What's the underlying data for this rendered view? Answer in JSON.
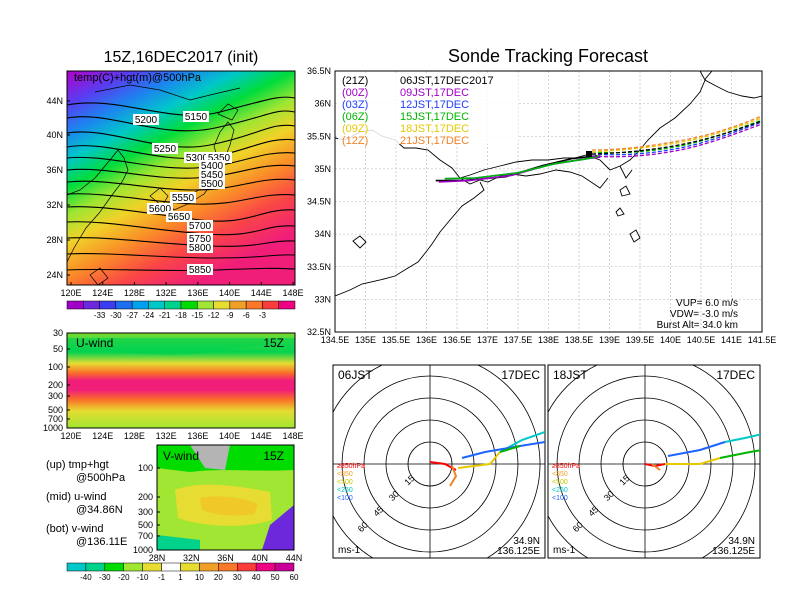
{
  "left_top": {
    "title": "15Z,16DEC2017 (init)",
    "label": "temp(C)+hgt(m)@500hPa",
    "lat_ticks": [
      "44N",
      "40N",
      "36N",
      "32N",
      "28N",
      "24N"
    ],
    "lon_ticks": [
      "120E",
      "124E",
      "128E",
      "132E",
      "136E",
      "140E",
      "144E",
      "148E"
    ],
    "contour_labels": [
      "5150",
      "5200",
      "5250",
      "5300",
      "5350",
      "5400",
      "5450",
      "5500",
      "5550",
      "5600",
      "5650",
      "5700",
      "5750",
      "5800",
      "5850"
    ],
    "colorbar_labels": [
      "-33",
      "-30",
      "-27",
      "-24",
      "-21",
      "-18",
      "-15",
      "-12",
      "-9",
      "-6",
      "-3"
    ],
    "colorbar_colors": [
      "#a000c8",
      "#6e28dc",
      "#3c3cf0",
      "#1e6ef0",
      "#00a0f0",
      "#00c8c8",
      "#00d28c",
      "#00dc00",
      "#a0e632",
      "#e6dc32",
      "#f0a028",
      "#fa7828",
      "#fa3c3c",
      "#f00082"
    ]
  },
  "left_mid": {
    "label": "U-wind",
    "time": "15Z",
    "p_ticks": [
      "30",
      "50",
      "100",
      "200",
      "300",
      "500",
      "700",
      "1000"
    ],
    "lon_ticks": [
      "120E",
      "124E",
      "128E",
      "132E",
      "136E",
      "140E",
      "144E",
      "148E"
    ]
  },
  "left_bot": {
    "label": "V-wind",
    "time": "15Z",
    "p_ticks": [
      "100",
      "200",
      "300",
      "500",
      "700",
      "1000"
    ],
    "lat_ticks": [
      "28N",
      "32N",
      "36N",
      "40N",
      "44N"
    ],
    "colorbar_labels": [
      "-40",
      "-30",
      "-20",
      "-10",
      "-1",
      "1",
      "10",
      "20",
      "30",
      "40",
      "50",
      "60"
    ],
    "colorbar_colors": [
      "#00c8c8",
      "#00d28c",
      "#00dc00",
      "#a0e632",
      "#e6dc32",
      "#ffffff",
      "#e6dc32",
      "#f0a028",
      "#fa7828",
      "#fa3c3c",
      "#f00082",
      "#c80096"
    ]
  },
  "legend": {
    "line1a": "(up)  tmp+hgt",
    "line1b": "@500hPa",
    "line2a": "(mid)  u-wind",
    "line2b": "@34.86N",
    "line3a": "(bot)  v-wind",
    "line3b": "@136.11E"
  },
  "right": {
    "title": "Sonde Tracking Forecast",
    "lat_ticks": [
      "36.5N",
      "36N",
      "35.5N",
      "35N",
      "34.5N",
      "34N",
      "33.5N",
      "33N",
      "32.5N"
    ],
    "lon_ticks": [
      "134.5E",
      "135E",
      "135.5E",
      "136E",
      "136.5E",
      "137E",
      "137.5E",
      "138E",
      "138.5E",
      "139E",
      "139.5E",
      "140E",
      "140.5E",
      "141E",
      "141.5E"
    ],
    "launches": [
      {
        "z": "(21Z)",
        "jst": "06JST,17DEC2017",
        "color": "#000000"
      },
      {
        "z": "(00Z)",
        "jst": "09JST,17DEC",
        "color": "#a000c8"
      },
      {
        "z": "(03Z)",
        "jst": "12JST,17DEC",
        "color": "#1e3cff"
      },
      {
        "z": "(06Z)",
        "jst": "15JST,17DEC",
        "color": "#00b400"
      },
      {
        "z": "(09Z)",
        "jst": "18JST,17DEC",
        "color": "#e6c800"
      },
      {
        "z": "(12Z)",
        "jst": "21JST,17DEC",
        "color": "#f08228"
      }
    ],
    "vup": "VUP=  6.0  m/s",
    "vdw": "VDW= -3.0  m/s",
    "burst": "Burst Alt=  34.0  km"
  },
  "polar_left": {
    "time": "06JST",
    "date": "17DEC",
    "rings": [
      "15",
      "30",
      "45",
      "60"
    ],
    "levels": [
      "≥850hPa",
      "<850",
      "<500",
      "<250",
      "<100"
    ],
    "level_colors": [
      "#ff0000",
      "#f0a028",
      "#c8c800",
      "#00c8c8",
      "#1e64ff"
    ],
    "lat": "34.9N",
    "lon": "136.125E",
    "unit": "ms-1"
  },
  "polar_right": {
    "time": "18JST",
    "date": "17DEC",
    "rings": [
      "15",
      "30",
      "45",
      "60"
    ],
    "levels": [
      "≥850hPa",
      "<850",
      "<500",
      "<250",
      "<100"
    ],
    "level_colors": [
      "#ff0000",
      "#f0a028",
      "#c8c800",
      "#00c8c8",
      "#1e64ff"
    ],
    "lat": "34.9N",
    "lon": "136.125E",
    "unit": "ms-1"
  },
  "chart_data": [
    {
      "type": "heatmap",
      "title": "15Z,16DEC2017 (init)",
      "variable": "temp(C)+hgt(m)@500hPa",
      "x_range": [
        "120E",
        "149E"
      ],
      "y_range": [
        "22N",
        "47N"
      ],
      "contours_m": [
        5150,
        5200,
        5250,
        5300,
        5350,
        5400,
        5450,
        5500,
        5550,
        5600,
        5650,
        5700,
        5750,
        5800,
        5850
      ],
      "color_levels_C": [
        -33,
        -30,
        -27,
        -24,
        -21,
        -18,
        -15,
        -12,
        -9,
        -6,
        -3
      ]
    },
    {
      "type": "heatmap",
      "title": "U-wind 15Z",
      "x_range": [
        "120E",
        "149E"
      ],
      "y_levels_hPa": [
        30,
        50,
        100,
        200,
        300,
        500,
        700,
        1000
      ]
    },
    {
      "type": "heatmap",
      "title": "V-wind 15Z",
      "x_range": [
        "28N",
        "44N"
      ],
      "y_levels_hPa": [
        100,
        200,
        300,
        500,
        700,
        1000
      ],
      "color_levels_ms": [
        -40,
        -30,
        -20,
        -10,
        -1,
        1,
        10,
        20,
        30,
        40,
        50,
        60
      ]
    },
    {
      "type": "line",
      "title": "Sonde Tracking Forecast",
      "xlim": [
        134.5,
        141.5
      ],
      "ylim": [
        32.5,
        36.5
      ],
      "launch_point": [
        138.9,
        35.2
      ],
      "series": [
        {
          "name": "(21Z) 06JST,17DEC2017",
          "x": [
            136.15,
            136.6,
            137.3,
            137.9,
            138.4,
            138.8
          ],
          "y": [
            34.82,
            34.82,
            34.88,
            35.05,
            35.16,
            35.2
          ]
        },
        {
          "name": "(00Z) 09JST,17DEC",
          "x": [
            136.2,
            136.7,
            137.4,
            138.0,
            138.5,
            138.85
          ],
          "y": [
            34.8,
            34.82,
            34.9,
            35.06,
            35.14,
            35.18
          ]
        },
        {
          "name": "(03Z) 12JST,17DEC",
          "x": [
            136.3,
            136.8,
            137.5,
            138.1,
            138.6,
            138.85
          ],
          "y": [
            34.85,
            34.86,
            34.94,
            35.08,
            35.15,
            35.2
          ]
        },
        {
          "name": "(06Z) 15JST,17DEC",
          "x": [
            136.3,
            136.8,
            137.5,
            138.1,
            138.6,
            138.85
          ],
          "y": [
            34.85,
            34.86,
            34.94,
            35.08,
            35.15,
            35.2
          ]
        }
      ]
    }
  ]
}
